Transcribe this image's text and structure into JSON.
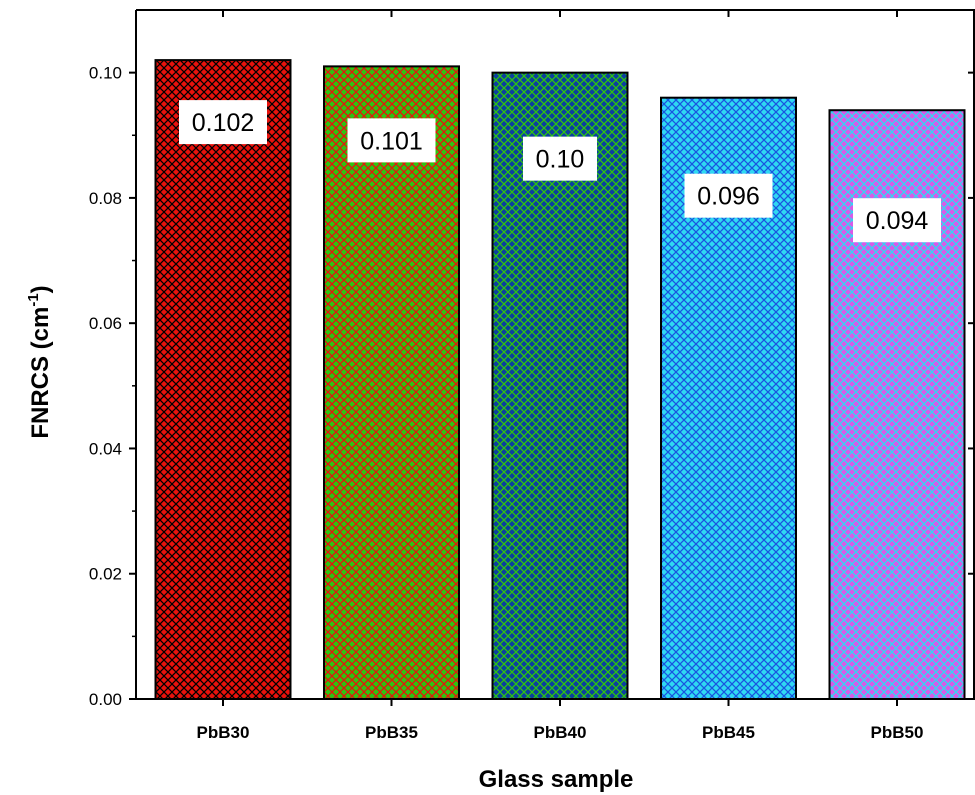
{
  "chart_data": {
    "type": "bar",
    "categories": [
      "PbB30",
      "PbB35",
      "PbB40",
      "PbB45",
      "PbB50"
    ],
    "values": [
      0.102,
      0.101,
      0.1,
      0.096,
      0.094
    ],
    "data_labels": [
      "0.102",
      "0.101",
      "0.10",
      "0.096",
      "0.094"
    ],
    "title": "",
    "xlabel": "Glass sample",
    "ylabel": "FNRCS (cm",
    "ylabel_superscript": "-1",
    "ylabel_suffix": ")",
    "ylim": [
      0,
      0.11
    ],
    "yticks": [
      "0.00",
      "0.02",
      "0.04",
      "0.06",
      "0.08",
      "0.10"
    ],
    "ytick_values": [
      0,
      0.02,
      0.04,
      0.06,
      0.08,
      0.1
    ],
    "grid": false,
    "legend": "none",
    "bar_colors": [
      {
        "base": "#e8120c",
        "pattern": "#000000"
      },
      {
        "base": "#2ec40f",
        "pattern": "#e8120c"
      },
      {
        "base": "#0a3fa0",
        "pattern": "#2ec40f"
      },
      {
        "base": "#2fd8f2",
        "pattern": "#1a55e0"
      },
      {
        "base": "#d85ae8",
        "pattern": "#2fd8f2"
      }
    ]
  }
}
